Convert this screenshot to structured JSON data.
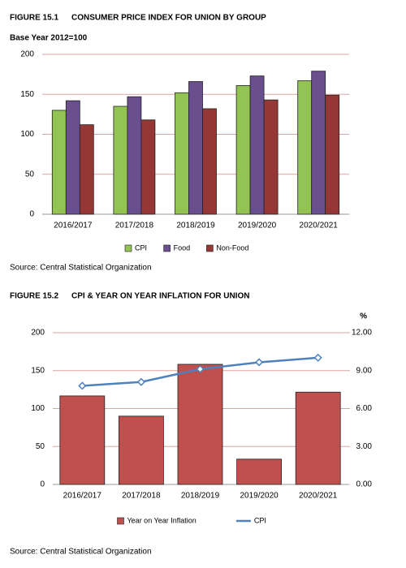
{
  "chart_data": [
    {
      "type": "bar",
      "label": "FIGURE 15.1",
      "title": "CONSUMER PRICE INDEX FOR UNION BY GROUP",
      "subtitle": "Base Year 2012=100",
      "categories": [
        "2016/2017",
        "2017/2018",
        "2018/2019",
        "2019/2020",
        "2020/2021"
      ],
      "series": [
        {
          "name": "CPI",
          "type": "bar",
          "color": "#92c353",
          "values": [
            130,
            135,
            152,
            161,
            167
          ]
        },
        {
          "name": "Food",
          "type": "bar",
          "color": "#6a4f8f",
          "values": [
            142,
            147,
            166,
            173,
            179
          ]
        },
        {
          "name": "Non-Food",
          "type": "bar",
          "color": "#953735",
          "values": [
            112,
            118,
            132,
            143,
            149
          ]
        }
      ],
      "ylim": [
        0,
        200
      ],
      "yticks": [
        0,
        50,
        100,
        150,
        200
      ],
      "grid": true,
      "legend": "bottom",
      "source": "Source: Central Statistical Organization"
    },
    {
      "type": "bar-line",
      "label": "FIGURE 15.2",
      "title": "CPI & YEAR ON YEAR INFLATION FOR UNION",
      "y2label": "%",
      "categories": [
        "2016/2017",
        "2017/2018",
        "2018/2019",
        "2019/2020",
        "2020/2021"
      ],
      "series": [
        {
          "name": "Year on Year Inflation",
          "type": "bar",
          "axis": "y2",
          "color": "#c0504d",
          "values": [
            7.0,
            5.4,
            9.5,
            2.0,
            7.3
          ]
        },
        {
          "name": "CPI",
          "type": "line",
          "color": "#4f81bd",
          "values": [
            130,
            135,
            152,
            161,
            167
          ]
        }
      ],
      "ylim": [
        0,
        200
      ],
      "yticks": [
        0,
        50,
        100,
        150,
        200
      ],
      "y2lim": [
        0,
        12
      ],
      "y2ticks": [
        {
          "value": 0,
          "label": "0.00"
        },
        {
          "value": 3,
          "label": "3.00"
        },
        {
          "value": 6,
          "label": "6.00"
        },
        {
          "value": 9,
          "label": "9.00"
        },
        {
          "value": 12,
          "label": "12.00"
        }
      ],
      "grid": true,
      "legend": "bottom",
      "source": "Source: Central Statistical Organization"
    }
  ]
}
